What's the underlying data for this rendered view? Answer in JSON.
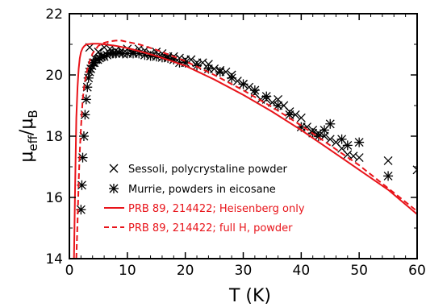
{
  "chart_data": {
    "type": "scatter",
    "xlabel": "T  (K)",
    "ylabel": {
      "main": "μ",
      "sub1": "eff",
      "sep": "/μ",
      "sub2": "B"
    },
    "xlim": [
      0,
      60
    ],
    "ylim": [
      14,
      22
    ],
    "x_ticks": [
      0,
      10,
      20,
      30,
      40,
      50,
      60
    ],
    "y_ticks": [
      14,
      16,
      18,
      20,
      22
    ],
    "grid": false,
    "legend_placement": "lower-left",
    "series": [
      {
        "name": "Sessoli, polycrystaline powder",
        "kind": "markers",
        "marker": "x",
        "color": "#000000",
        "points": [
          [
            3.5,
            20.9
          ],
          [
            5,
            20.75
          ],
          [
            6,
            20.9
          ],
          [
            7,
            20.85
          ],
          [
            8,
            20.8
          ],
          [
            9,
            20.8
          ],
          [
            10,
            20.85
          ],
          [
            11,
            20.75
          ],
          [
            12,
            20.85
          ],
          [
            13,
            20.8
          ],
          [
            14,
            20.7
          ],
          [
            15,
            20.75
          ],
          [
            16,
            20.7
          ],
          [
            17,
            20.6
          ],
          [
            18,
            20.6
          ],
          [
            19,
            20.55
          ],
          [
            20,
            20.5
          ],
          [
            21,
            20.5
          ],
          [
            22,
            20.4
          ],
          [
            23,
            20.4
          ],
          [
            24,
            20.35
          ],
          [
            25,
            20.2
          ],
          [
            26,
            20.15
          ],
          [
            27,
            20.1
          ],
          [
            28,
            20.0
          ],
          [
            29,
            19.8
          ],
          [
            30,
            19.7
          ],
          [
            31,
            19.6
          ],
          [
            32,
            19.4
          ],
          [
            33,
            19.2
          ],
          [
            34,
            19.2
          ],
          [
            35,
            19.1
          ],
          [
            36,
            19.2
          ],
          [
            37,
            19.0
          ],
          [
            38,
            18.8
          ],
          [
            39,
            18.7
          ],
          [
            40,
            18.6
          ],
          [
            41,
            18.3
          ],
          [
            42,
            18.2
          ],
          [
            43,
            18.1
          ],
          [
            44,
            18.0
          ],
          [
            45,
            17.9
          ],
          [
            46,
            17.8
          ],
          [
            47,
            17.6
          ],
          [
            48,
            17.4
          ],
          [
            49,
            17.35
          ],
          [
            50,
            17.3
          ],
          [
            55,
            17.2
          ],
          [
            60,
            16.9
          ]
        ]
      },
      {
        "name": "Murrie, powders in eicosane",
        "kind": "markers",
        "marker": "asterisk",
        "color": "#000000",
        "points": [
          [
            2.0,
            15.6
          ],
          [
            2.15,
            16.4
          ],
          [
            2.3,
            17.3
          ],
          [
            2.5,
            18.0
          ],
          [
            2.7,
            18.7
          ],
          [
            2.9,
            19.2
          ],
          [
            3.1,
            19.6
          ],
          [
            3.3,
            19.9
          ],
          [
            3.5,
            20.1
          ],
          [
            3.7,
            20.2
          ],
          [
            3.9,
            20.3
          ],
          [
            4.1,
            20.4
          ],
          [
            4.3,
            20.4
          ],
          [
            4.6,
            20.5
          ],
          [
            4.9,
            20.5
          ],
          [
            5.2,
            20.55
          ],
          [
            5.6,
            20.6
          ],
          [
            6.0,
            20.6
          ],
          [
            6.5,
            20.65
          ],
          [
            7.0,
            20.7
          ],
          [
            7.5,
            20.7
          ],
          [
            8.0,
            20.7
          ],
          [
            8.6,
            20.72
          ],
          [
            9.2,
            20.7
          ],
          [
            10,
            20.7
          ],
          [
            11,
            20.7
          ],
          [
            12,
            20.7
          ],
          [
            13,
            20.65
          ],
          [
            14,
            20.62
          ],
          [
            15,
            20.6
          ],
          [
            16,
            20.57
          ],
          [
            17,
            20.55
          ],
          [
            18,
            20.5
          ],
          [
            19,
            20.4
          ],
          [
            20,
            20.4
          ],
          [
            22,
            20.3
          ],
          [
            24,
            20.2
          ],
          [
            26,
            20.1
          ],
          [
            28,
            19.9
          ],
          [
            30,
            19.7
          ],
          [
            32,
            19.5
          ],
          [
            34,
            19.3
          ],
          [
            36,
            19.0
          ],
          [
            38,
            18.7
          ],
          [
            40,
            18.3
          ],
          [
            42,
            18.1
          ],
          [
            43,
            18.0
          ],
          [
            44,
            18.2
          ],
          [
            45,
            18.4
          ],
          [
            47,
            17.9
          ],
          [
            48,
            17.7
          ],
          [
            50,
            17.8
          ],
          [
            55,
            16.7
          ]
        ]
      },
      {
        "name": "PRB 89, 214422; Heisenberg only",
        "kind": "line",
        "dash": "solid",
        "color": "#e8141a",
        "points": [
          [
            0.8,
            14.0
          ],
          [
            1.0,
            16.5
          ],
          [
            1.2,
            18.6
          ],
          [
            1.4,
            19.6
          ],
          [
            1.6,
            20.2
          ],
          [
            1.8,
            20.55
          ],
          [
            2.0,
            20.75
          ],
          [
            2.3,
            20.88
          ],
          [
            2.6,
            20.95
          ],
          [
            3,
            21.0
          ],
          [
            4,
            21.02
          ],
          [
            5,
            21.02
          ],
          [
            6,
            21.0
          ],
          [
            8,
            20.95
          ],
          [
            10,
            20.88
          ],
          [
            12,
            20.78
          ],
          [
            15,
            20.62
          ],
          [
            20,
            20.3
          ],
          [
            25,
            19.85
          ],
          [
            30,
            19.35
          ],
          [
            35,
            18.8
          ],
          [
            40,
            18.2
          ],
          [
            45,
            17.55
          ],
          [
            50,
            16.9
          ],
          [
            55,
            16.25
          ],
          [
            60,
            15.45
          ]
        ]
      },
      {
        "name": "PRB 89, 214422; full H, powder",
        "kind": "line",
        "dash": "dashed",
        "color": "#e8141a",
        "points": [
          [
            1.2,
            14.0
          ],
          [
            1.4,
            15.2
          ],
          [
            1.6,
            16.5
          ],
          [
            1.8,
            17.5
          ],
          [
            2.0,
            18.3
          ],
          [
            2.3,
            19.2
          ],
          [
            2.6,
            19.7
          ],
          [
            3,
            20.1
          ],
          [
            3.5,
            20.45
          ],
          [
            4,
            20.7
          ],
          [
            5,
            20.95
          ],
          [
            6,
            21.05
          ],
          [
            7,
            21.1
          ],
          [
            8,
            21.12
          ],
          [
            9,
            21.12
          ],
          [
            10,
            21.08
          ],
          [
            12,
            21.0
          ],
          [
            15,
            20.82
          ],
          [
            20,
            20.45
          ],
          [
            25,
            20.0
          ],
          [
            30,
            19.5
          ],
          [
            35,
            18.95
          ],
          [
            40,
            18.35
          ],
          [
            45,
            17.7
          ],
          [
            50,
            17.05
          ],
          [
            55,
            16.3
          ],
          [
            60,
            15.55
          ]
        ]
      }
    ]
  }
}
